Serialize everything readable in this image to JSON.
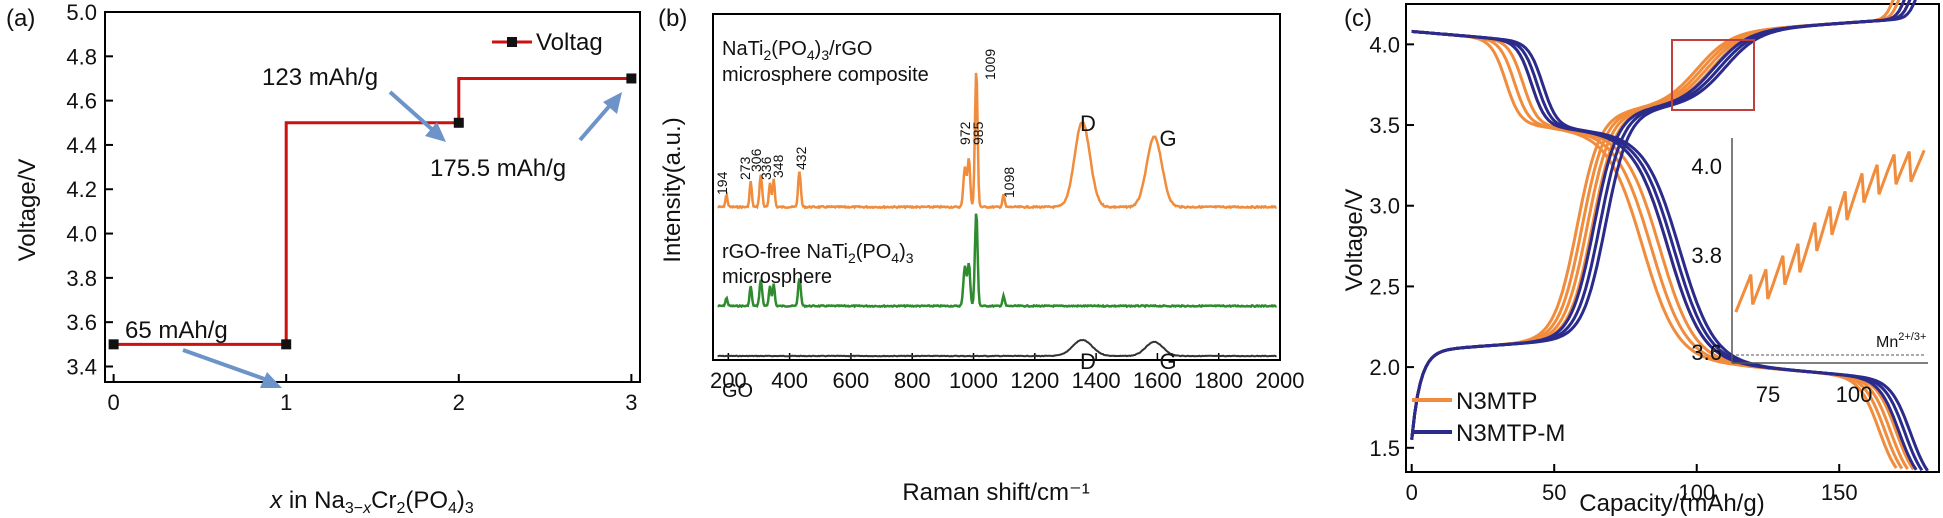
{
  "chart_data": [
    {
      "panel_label": "(a)",
      "type": "line",
      "xlabel_italic": "x",
      "xlabel_rest": " in Na",
      "xlabel_sub1": "3−",
      "xlabel_sub1_it": "x",
      "xlabel_mid": "Cr",
      "xlabel_sub2": "2",
      "xlabel_mid2": "(PO",
      "xlabel_sub3": "4",
      "xlabel_end": ")",
      "xlabel_sub4": "3",
      "ylabel": "Voltage/V",
      "xlim": [
        -0.05,
        3.05
      ],
      "ylim": [
        3.33,
        5.0
      ],
      "xticks": [
        "0",
        "1",
        "2",
        "3"
      ],
      "yticks": [
        "3.4",
        "3.6",
        "3.8",
        "4.0",
        "4.2",
        "4.4",
        "4.6",
        "4.8",
        "5.0"
      ],
      "series": [
        {
          "name": "Voltag",
          "color": "#cc1111",
          "x": [
            0,
            1,
            1,
            2,
            2,
            3
          ],
          "y": [
            3.5,
            3.5,
            4.5,
            4.5,
            4.7,
            4.7
          ],
          "markers": [
            [
              0,
              3.5
            ],
            [
              1,
              3.5
            ],
            [
              2,
              4.5
            ],
            [
              3,
              4.7
            ]
          ]
        }
      ],
      "legend_position": "top-right",
      "annotations": [
        {
          "text": "65 mAh/g",
          "x": 1,
          "y": 3.5
        },
        {
          "text": "123 mAh/g",
          "x": 2,
          "y": 4.5
        },
        {
          "text": "175.5 mAh/g",
          "x": 3,
          "y": 4.7
        }
      ]
    },
    {
      "panel_label": "(b)",
      "type": "line",
      "xlabel": "Raman shift/cm⁻¹",
      "ylabel": "Intensity(a.u.)",
      "xlim": [
        150,
        2000
      ],
      "xticks": [
        "200",
        "400",
        "600",
        "800",
        "1000",
        "1200",
        "1400",
        "1600",
        "1800",
        "2000"
      ],
      "series": [
        {
          "name_parts": [
            "NaTi",
            "2",
            "(PO",
            "4",
            ")",
            "3",
            "/rGO"
          ],
          "name_line2": "microsphere composite",
          "color": "#f08c3c"
        },
        {
          "name_parts": [
            "rGO-free NaTi",
            "2",
            "(PO",
            "4",
            ")",
            "3"
          ],
          "name_line2": "microsphere",
          "color": "#2e8b2e"
        },
        {
          "name": "GO",
          "color": "#333333"
        }
      ],
      "peak_labels": [
        "194",
        "273",
        "306",
        "336",
        "348",
        "432",
        "972",
        "985",
        "1009",
        "1098"
      ],
      "band_labels": [
        "D",
        "G",
        "D",
        "G"
      ]
    },
    {
      "panel_label": "(c)",
      "type": "line",
      "xlabel": "Capacity/(mAh/g)",
      "ylabel": "Voltage/V",
      "xlim": [
        -2,
        185
      ],
      "ylim": [
        1.35,
        4.25
      ],
      "xticks": [
        "0",
        "50",
        "100",
        "150"
      ],
      "yticks": [
        "1.5",
        "2.0",
        "2.5",
        "3.0",
        "3.5",
        "4.0"
      ],
      "series": [
        {
          "name": "N3MTP",
          "color": "#f08c3c"
        },
        {
          "name": "N3MTP-M",
          "color": "#2b2b8c"
        }
      ],
      "legend_position": "bottom-left",
      "inset": {
        "xticks": [
          "75",
          "100"
        ],
        "yticks": [
          "3.6",
          "3.8",
          "4.0"
        ],
        "label_base": "Mn",
        "label_sup": "2+/3+"
      }
    }
  ]
}
